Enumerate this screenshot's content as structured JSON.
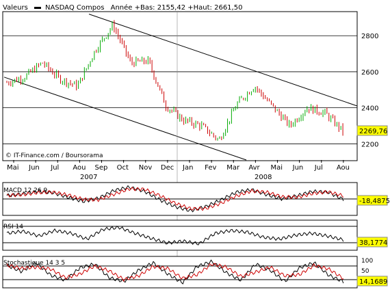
{
  "header": {
    "range_label": "Valeurs",
    "instrument": "NASDAQ Compos",
    "stats": "Année +Bas: 2155,42 +Haut: 2661,50"
  },
  "colors": {
    "up": "#00aa00",
    "down": "#cc0000",
    "macd_signal": "#cc0000",
    "box": "#ffff00"
  },
  "chart_data": [
    {
      "type": "candlestick",
      "x_ticks": [
        "Mai",
        "Jun",
        "Jul",
        "Aou",
        "Sep",
        "Oct",
        "Nov",
        "Dec",
        "Jan",
        "Fev",
        "Mar",
        "Avr",
        "Mai",
        "Jun",
        "Jul",
        "Aou"
      ],
      "years": [
        "2007",
        "2008"
      ],
      "ylim": [
        2110,
        2930
      ],
      "y_ticks": [
        "2200",
        "2400",
        "2600",
        "2800"
      ],
      "last_value": "2269,76",
      "monthly_closes": [
        2540,
        2570,
        2650,
        2560,
        2520,
        2720,
        2860,
        2650,
        2660,
        2410,
        2330,
        2300,
        2220,
        2420,
        2520,
        2410,
        2300,
        2400,
        2370,
        2270
      ],
      "credit": "© IT-Finance.com / Boursorama"
    },
    {
      "type": "line",
      "label": "MACD 12 26 9",
      "last_value": "-18,4875",
      "series": [
        {
          "name": "MACD 12 26 9",
          "values": [
            5,
            15,
            30,
            22,
            -5,
            -30,
            -10,
            35,
            55,
            30,
            -20,
            -60,
            -85,
            -60,
            -20,
            25,
            40,
            10,
            -15,
            5,
            30,
            25,
            -18
          ]
        }
      ]
    },
    {
      "type": "line",
      "label": "RSI 14",
      "last_value": "38,1774",
      "series": [
        {
          "name": "RSI 14",
          "values": [
            55,
            60,
            48,
            62,
            55,
            40,
            65,
            70,
            55,
            42,
            30,
            35,
            28,
            55,
            62,
            58,
            45,
            40,
            50,
            55,
            48,
            38
          ]
        }
      ]
    },
    {
      "type": "line",
      "label": "Stochastique 14 3 5",
      "last_value": "14,1689",
      "y_ticks": [
        "100",
        "50",
        "0"
      ],
      "series": [
        {
          "name": "Stochastique 14 3 5",
          "values": [
            80,
            55,
            90,
            40,
            20,
            70,
            85,
            30,
            15,
            60,
            90,
            45,
            10,
            75,
            95,
            50,
            20,
            85,
            60,
            15,
            70,
            90,
            40,
            14
          ]
        }
      ]
    }
  ]
}
